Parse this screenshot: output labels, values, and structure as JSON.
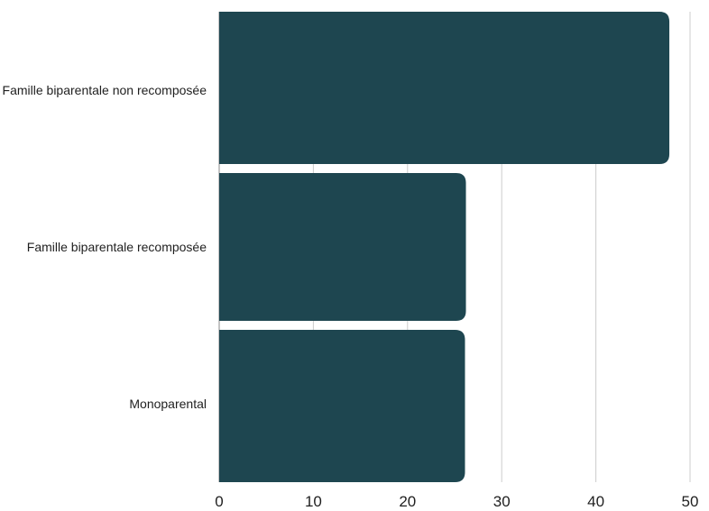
{
  "chart_data": {
    "type": "bar",
    "orientation": "horizontal",
    "categories": [
      "Famille biparentale non recomposée",
      "Famille biparentale recomposée",
      "Monoparental"
    ],
    "values": [
      47.8,
      26.2,
      26.1
    ],
    "title": "",
    "xlabel": "",
    "ylabel": "",
    "xlim": [
      0,
      50
    ],
    "xticks": [
      0,
      10,
      20,
      30,
      40,
      50
    ],
    "tick_labels": [
      "0",
      "10",
      "20",
      "30",
      "40",
      "50"
    ],
    "grid": "vertical",
    "legend": "none",
    "bar_color": "#1e4650",
    "grid_color": "#cccccc"
  }
}
